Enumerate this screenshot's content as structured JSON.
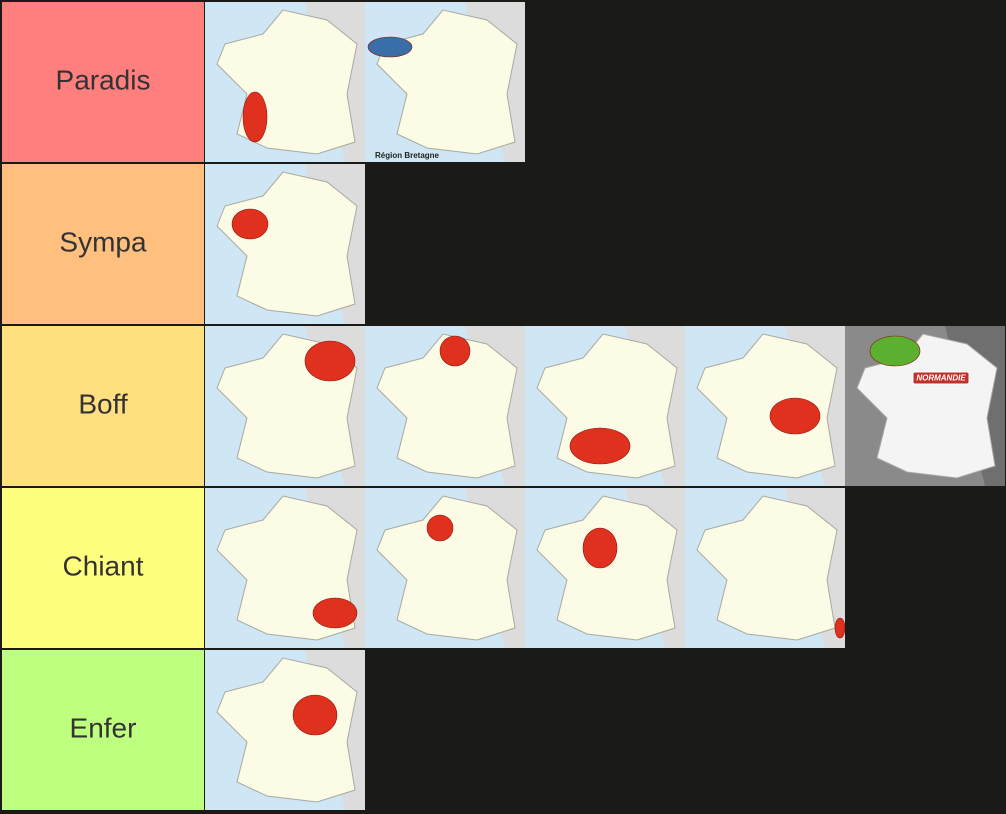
{
  "tiers": [
    {
      "label": "Paradis",
      "color": "#ff7f7f",
      "items": [
        {
          "highlight": "#e0301e"
        },
        {
          "highlight": "#3a6ea8",
          "caption": "Région Bretagne"
        }
      ]
    },
    {
      "label": "Sympa",
      "color": "#ffbf7f",
      "items": [
        {
          "highlight": "#e0301e"
        }
      ]
    },
    {
      "label": "Boff",
      "color": "#ffdf80",
      "items": [
        {
          "highlight": "#e0301e"
        },
        {
          "highlight": "#e0301e"
        },
        {
          "highlight": "#e0301e"
        },
        {
          "highlight": "#e0301e"
        },
        {
          "highlight": "#5cb030",
          "tag": "NORMANDIE"
        }
      ]
    },
    {
      "label": "Chiant",
      "color": "#ffff7f",
      "items": [
        {
          "highlight": "#e0301e"
        },
        {
          "highlight": "#e0301e"
        },
        {
          "highlight": "#e0301e"
        },
        {
          "highlight": "#e0301e"
        }
      ]
    },
    {
      "label": "Enfer",
      "color": "#bfff7f",
      "items": [
        {
          "highlight": "#e0301e"
        }
      ]
    }
  ]
}
